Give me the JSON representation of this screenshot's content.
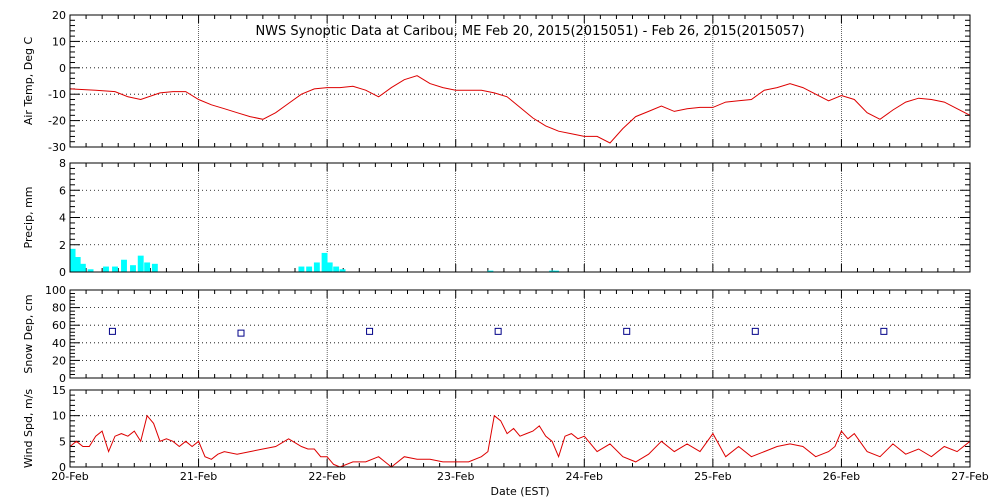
{
  "chart_data": {
    "title": "NWS Synoptic Data at Caribou, ME   Feb 20, 2015(2015051) - Feb 26, 2015(2015057)",
    "xlabel": "Date (EST)",
    "x_range": [
      0,
      7
    ],
    "x_ticks": [
      "20-Feb",
      "21-Feb",
      "22-Feb",
      "23-Feb",
      "24-Feb",
      "25-Feb",
      "26-Feb",
      "27-Feb"
    ],
    "panels": [
      {
        "type": "line",
        "ylabel": "Air Temp, Deg C",
        "ylim": [
          -30,
          20
        ],
        "yticks": [
          -30,
          -20,
          -10,
          0,
          10,
          20
        ],
        "color": "#dd0000",
        "x": [
          0,
          0.2,
          0.35,
          0.45,
          0.55,
          0.7,
          0.8,
          0.9,
          1.0,
          1.1,
          1.2,
          1.3,
          1.4,
          1.5,
          1.6,
          1.7,
          1.8,
          1.9,
          2.0,
          2.1,
          2.2,
          2.3,
          2.4,
          2.5,
          2.6,
          2.7,
          2.8,
          2.9,
          3.0,
          3.1,
          3.2,
          3.3,
          3.4,
          3.5,
          3.6,
          3.7,
          3.8,
          3.9,
          4.0,
          4.1,
          4.2,
          4.3,
          4.4,
          4.5,
          4.6,
          4.7,
          4.8,
          4.9,
          5.0,
          5.1,
          5.2,
          5.3,
          5.4,
          5.5,
          5.6,
          5.7,
          5.8,
          5.9,
          6.0,
          6.1,
          6.2,
          6.3,
          6.4,
          6.5,
          6.6,
          6.7,
          6.8,
          6.9,
          7.0
        ],
        "y": [
          -8,
          -8.5,
          -9,
          -11,
          -12,
          -9.5,
          -9,
          -9,
          -12,
          -14,
          -15.5,
          -17,
          -18.5,
          -19.5,
          -17,
          -13.5,
          -10,
          -8,
          -7.5,
          -7.5,
          -7,
          -8.5,
          -11,
          -7.5,
          -4.5,
          -3,
          -6,
          -7.5,
          -8.5,
          -8.5,
          -8.5,
          -9.5,
          -11,
          -15,
          -19,
          -22,
          -24,
          -25,
          -26,
          -26,
          -28.5,
          -23,
          -18.5,
          -16.5,
          -14.5,
          -16.5,
          -15.5,
          -15,
          -15,
          -13,
          -12.5,
          -12,
          -8.5,
          -7.5,
          -6,
          -7.5,
          -10,
          -12.5,
          -10.5,
          -12,
          -17,
          -19.5,
          -16,
          -13,
          -11.5,
          -12,
          -13,
          -15.5,
          -18
        ]
      },
      {
        "type": "bar",
        "ylabel": "Precip, mm",
        "ylim": [
          0,
          8
        ],
        "yticks": [
          0,
          2,
          4,
          6,
          8
        ],
        "color": "#00ffff",
        "x": [
          0.02,
          0.06,
          0.1,
          0.16,
          0.28,
          0.35,
          0.42,
          0.49,
          0.55,
          0.6,
          0.66,
          1.8,
          1.86,
          1.92,
          1.98,
          2.02,
          2.07,
          2.12,
          3.27,
          3.75,
          3.78
        ],
        "values": [
          1.7,
          1.1,
          0.6,
          0.2,
          0.4,
          0.4,
          0.9,
          0.5,
          1.2,
          0.7,
          0.6,
          0.4,
          0.4,
          0.7,
          1.4,
          0.7,
          0.4,
          0.2,
          0.1,
          0.1,
          0.1
        ]
      },
      {
        "type": "scatter",
        "ylabel": "Snow Dep, cm",
        "ylim": [
          0,
          100
        ],
        "yticks": [
          0,
          20,
          40,
          60,
          80,
          100
        ],
        "color": "#000088",
        "x": [
          0.33,
          1.33,
          2.33,
          3.33,
          4.33,
          5.33,
          6.33
        ],
        "y": [
          53,
          51,
          53,
          53,
          53,
          53,
          53
        ]
      },
      {
        "type": "line",
        "ylabel": "Wind Spd, m/s",
        "ylim": [
          0,
          15
        ],
        "yticks": [
          0,
          5,
          10,
          15
        ],
        "color": "#dd0000",
        "x": [
          0,
          0.05,
          0.1,
          0.15,
          0.2,
          0.25,
          0.3,
          0.35,
          0.4,
          0.45,
          0.5,
          0.55,
          0.6,
          0.65,
          0.7,
          0.75,
          0.8,
          0.85,
          0.9,
          0.95,
          1.0,
          1.05,
          1.1,
          1.15,
          1.2,
          1.3,
          1.4,
          1.5,
          1.6,
          1.7,
          1.8,
          1.85,
          1.9,
          1.95,
          2.0,
          2.05,
          2.1,
          2.2,
          2.3,
          2.4,
          2.5,
          2.6,
          2.7,
          2.8,
          2.9,
          3.0,
          3.1,
          3.2,
          3.25,
          3.3,
          3.35,
          3.4,
          3.45,
          3.5,
          3.55,
          3.6,
          3.65,
          3.7,
          3.75,
          3.8,
          3.85,
          3.9,
          3.95,
          4.0,
          4.1,
          4.2,
          4.3,
          4.4,
          4.5,
          4.6,
          4.7,
          4.8,
          4.9,
          5.0,
          5.1,
          5.2,
          5.3,
          5.4,
          5.5,
          5.6,
          5.7,
          5.8,
          5.9,
          5.95,
          6.0,
          6.05,
          6.1,
          6.2,
          6.3,
          6.4,
          6.5,
          6.6,
          6.7,
          6.8,
          6.9,
          7.0
        ],
        "y": [
          4,
          5,
          4,
          4,
          6,
          7,
          3,
          6,
          6.5,
          6,
          7,
          5,
          10,
          8.5,
          5,
          5.5,
          5,
          4,
          5,
          4,
          5,
          2,
          1.5,
          2.5,
          3,
          2.5,
          3,
          3.5,
          4,
          5.5,
          4,
          3.5,
          3.5,
          2,
          2,
          0.5,
          0,
          1,
          1,
          2,
          0,
          2,
          1.5,
          1.5,
          1,
          1,
          1,
          2,
          3,
          10,
          9,
          6.5,
          7.5,
          6,
          6.5,
          7,
          8,
          6,
          5,
          2,
          6,
          6.5,
          5.5,
          6,
          3,
          4.5,
          2,
          1,
          2.5,
          5,
          3,
          4.5,
          3,
          6.5,
          2,
          4,
          2,
          3,
          4,
          4.5,
          4,
          2,
          3,
          4,
          7,
          5.5,
          6.5,
          3,
          2,
          4.5,
          2.5,
          3.5,
          2,
          4,
          3,
          5
        ]
      }
    ]
  }
}
